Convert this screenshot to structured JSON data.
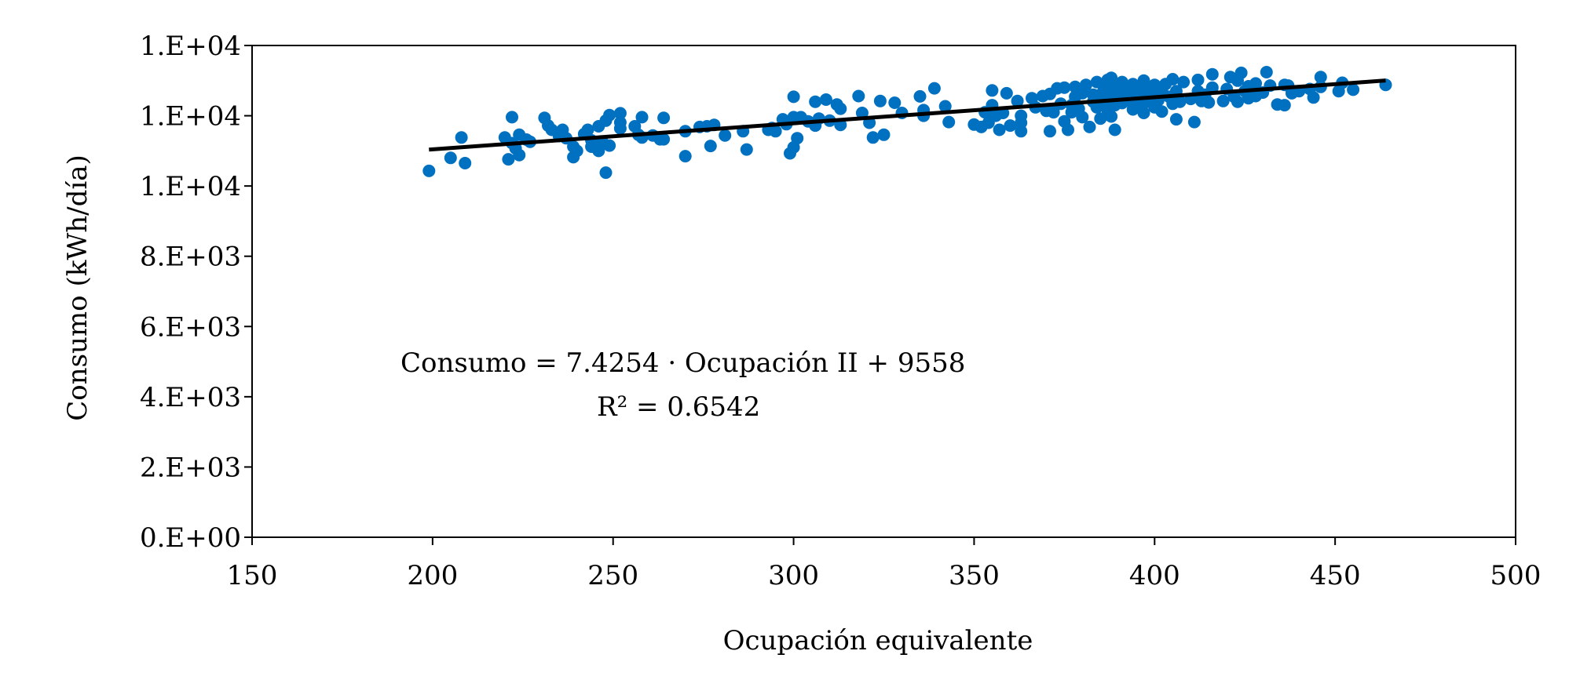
{
  "chart_data": {
    "type": "scatter",
    "title": "",
    "xlabel": "Ocupación equivalente",
    "ylabel": "Consumo (kWh/día)",
    "xlim": [
      150,
      500
    ],
    "ylim": [
      0,
      14000
    ],
    "x_ticks": [
      150,
      200,
      250,
      300,
      350,
      400,
      450,
      500
    ],
    "y_ticks": [
      0,
      2000,
      4000,
      6000,
      8000,
      10000,
      12000,
      14000
    ],
    "x_tick_labels": [
      "150",
      "200",
      "250",
      "300",
      "350",
      "400",
      "450",
      "500"
    ],
    "y_tick_labels": [
      "0.E+00",
      "2.E+03",
      "4.E+03",
      "6.E+03",
      "8.E+03",
      "1.E+04",
      "1.E+04",
      "1.E+04"
    ],
    "grid": false,
    "legend": "none",
    "marker_color": "#0070C0",
    "trendline_color": "#000000",
    "trendline": {
      "slope": 7.4254,
      "intercept": 9558,
      "x_range": [
        199,
        464
      ]
    },
    "annotation": {
      "equation": "Consumo = 7.4254 · Ocupación II + 9558",
      "r2": "R² = 0.6542"
    },
    "points": [
      [
        199,
        10430
      ],
      [
        205,
        10800
      ],
      [
        208,
        11380
      ],
      [
        209,
        10650
      ],
      [
        220,
        11380
      ],
      [
        221,
        10760
      ],
      [
        222,
        11220
      ],
      [
        222,
        11960
      ],
      [
        223,
        11070
      ],
      [
        224,
        10880
      ],
      [
        224,
        11460
      ],
      [
        226,
        11320
      ],
      [
        227,
        11260
      ],
      [
        231,
        11940
      ],
      [
        232,
        11720
      ],
      [
        233,
        11600
      ],
      [
        235,
        11420
      ],
      [
        236,
        11600
      ],
      [
        237,
        11360
      ],
      [
        239,
        10820
      ],
      [
        239,
        11120
      ],
      [
        240,
        11000
      ],
      [
        242,
        11480
      ],
      [
        243,
        11600
      ],
      [
        244,
        11300
      ],
      [
        244,
        11120
      ],
      [
        245,
        11140
      ],
      [
        246,
        11700
      ],
      [
        246,
        11000
      ],
      [
        247,
        11260
      ],
      [
        248,
        11860
      ],
      [
        248,
        10380
      ],
      [
        249,
        12020
      ],
      [
        249,
        11150
      ],
      [
        252,
        12070
      ],
      [
        252,
        11810
      ],
      [
        252,
        11640
      ],
      [
        256,
        11700
      ],
      [
        257,
        11460
      ],
      [
        258,
        11380
      ],
      [
        258,
        11960
      ],
      [
        261,
        11440
      ],
      [
        263,
        11330
      ],
      [
        264,
        11940
      ],
      [
        264,
        11330
      ],
      [
        270,
        11560
      ],
      [
        270,
        10850
      ],
      [
        274,
        11680
      ],
      [
        276,
        11700
      ],
      [
        277,
        11140
      ],
      [
        278,
        11740
      ],
      [
        281,
        11440
      ],
      [
        286,
        11560
      ],
      [
        287,
        11040
      ],
      [
        293,
        11600
      ],
      [
        294,
        11650
      ],
      [
        295,
        11560
      ],
      [
        297,
        11900
      ],
      [
        298,
        11760
      ],
      [
        299,
        10930
      ],
      [
        300,
        12540
      ],
      [
        300,
        11960
      ],
      [
        300,
        11100
      ],
      [
        301,
        11360
      ],
      [
        302,
        11960
      ],
      [
        304,
        11840
      ],
      [
        306,
        12400
      ],
      [
        306,
        11720
      ],
      [
        307,
        11920
      ],
      [
        309,
        12460
      ],
      [
        310,
        11860
      ],
      [
        312,
        12320
      ],
      [
        313,
        12200
      ],
      [
        313,
        11740
      ],
      [
        318,
        12560
      ],
      [
        319,
        12080
      ],
      [
        321,
        11800
      ],
      [
        322,
        11380
      ],
      [
        324,
        12420
      ],
      [
        325,
        11460
      ],
      [
        328,
        12370
      ],
      [
        330,
        12080
      ],
      [
        335,
        12550
      ],
      [
        336,
        12160
      ],
      [
        336,
        12000
      ],
      [
        339,
        12780
      ],
      [
        342,
        12270
      ],
      [
        343,
        11820
      ],
      [
        350,
        11750
      ],
      [
        352,
        11680
      ],
      [
        353,
        12100
      ],
      [
        354,
        11800
      ],
      [
        355,
        12720
      ],
      [
        355,
        12300
      ],
      [
        356,
        12000
      ],
      [
        357,
        11600
      ],
      [
        358,
        12080
      ],
      [
        359,
        12640
      ],
      [
        360,
        11720
      ],
      [
        362,
        12420
      ],
      [
        363,
        12000
      ],
      [
        363,
        11800
      ],
      [
        363,
        11560
      ],
      [
        366,
        12500
      ],
      [
        367,
        12240
      ],
      [
        369,
        12560
      ],
      [
        370,
        12140
      ],
      [
        371,
        11560
      ],
      [
        371,
        12620
      ],
      [
        372,
        12100
      ],
      [
        373,
        12780
      ],
      [
        374,
        12340
      ],
      [
        375,
        11840
      ],
      [
        375,
        12800
      ],
      [
        376,
        11600
      ],
      [
        377,
        12100
      ],
      [
        377,
        12300
      ],
      [
        378,
        12540
      ],
      [
        378,
        12820
      ],
      [
        379,
        12200
      ],
      [
        380,
        11960
      ],
      [
        380,
        12640
      ],
      [
        380,
        12700
      ],
      [
        381,
        12880
      ],
      [
        382,
        11680
      ],
      [
        383,
        12400
      ],
      [
        383,
        12600
      ],
      [
        384,
        12240
      ],
      [
        384,
        12960
      ],
      [
        385,
        11920
      ],
      [
        385,
        12600
      ],
      [
        386,
        12440
      ],
      [
        386,
        12800
      ],
      [
        387,
        12160
      ],
      [
        387,
        12600
      ],
      [
        387,
        13020
      ],
      [
        388,
        11980
      ],
      [
        388,
        12880
      ],
      [
        388,
        13080
      ],
      [
        389,
        11600
      ],
      [
        389,
        12300
      ],
      [
        390,
        12540
      ],
      [
        390,
        12760
      ],
      [
        391,
        12960
      ],
      [
        391,
        12360
      ],
      [
        392,
        12580
      ],
      [
        392,
        12820
      ],
      [
        393,
        12440
      ],
      [
        393,
        12640
      ],
      [
        394,
        12900
      ],
      [
        394,
        12180
      ],
      [
        395,
        12480
      ],
      [
        395,
        12720
      ],
      [
        396,
        12300
      ],
      [
        396,
        12560
      ],
      [
        397,
        12080
      ],
      [
        397,
        13000
      ],
      [
        398,
        12780
      ],
      [
        398,
        12400
      ],
      [
        399,
        12620
      ],
      [
        400,
        12240
      ],
      [
        400,
        12880
      ],
      [
        401,
        12440
      ],
      [
        402,
        12120
      ],
      [
        402,
        12700
      ],
      [
        403,
        12900
      ],
      [
        404,
        12540
      ],
      [
        405,
        13040
      ],
      [
        405,
        12340
      ],
      [
        406,
        11900
      ],
      [
        406,
        12700
      ],
      [
        407,
        12400
      ],
      [
        408,
        12960
      ],
      [
        410,
        12480
      ],
      [
        411,
        11820
      ],
      [
        412,
        12700
      ],
      [
        412,
        13020
      ],
      [
        413,
        12420
      ],
      [
        414,
        12600
      ],
      [
        415,
        12380
      ],
      [
        416,
        12800
      ],
      [
        416,
        13180
      ],
      [
        419,
        12420
      ],
      [
        420,
        12760
      ],
      [
        421,
        13100
      ],
      [
        422,
        12540
      ],
      [
        423,
        13000
      ],
      [
        423,
        12400
      ],
      [
        424,
        13220
      ],
      [
        425,
        12700
      ],
      [
        426,
        12840
      ],
      [
        426,
        12500
      ],
      [
        428,
        12920
      ],
      [
        428,
        12560
      ],
      [
        430,
        12660
      ],
      [
        431,
        13240
      ],
      [
        432,
        12860
      ],
      [
        434,
        12320
      ],
      [
        436,
        12880
      ],
      [
        436,
        12300
      ],
      [
        437,
        12860
      ],
      [
        438,
        12640
      ],
      [
        440,
        12700
      ],
      [
        443,
        12760
      ],
      [
        444,
        12520
      ],
      [
        446,
        13100
      ],
      [
        446,
        12820
      ],
      [
        451,
        12700
      ],
      [
        452,
        12940
      ],
      [
        455,
        12740
      ],
      [
        464,
        12880
      ]
    ]
  }
}
